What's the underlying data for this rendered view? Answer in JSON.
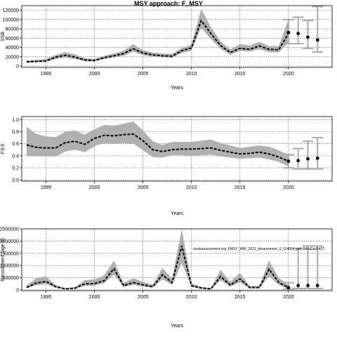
{
  "title": "MSY approach: F_MSY",
  "watermark": "stockassessment.org_FMSY_WW_2021_Assessment_3_114861_pid_3dbd2ad1437",
  "chart_data": [
    {
      "type": "line",
      "ylabel": "SSB",
      "xlabel": "Years",
      "xlim": [
        1992.5,
        2024.5
      ],
      "ylim": [
        -3000,
        130000
      ],
      "xticks": [
        1995,
        2000,
        2005,
        2010,
        2015,
        2020
      ],
      "yticks": [
        0,
        20000,
        40000,
        60000,
        80000,
        100000,
        120000
      ],
      "ytick_labels": [
        "0",
        "20000",
        "40000",
        "60000",
        "80000",
        "100000",
        "120000"
      ],
      "grid": true,
      "x": [
        1993,
        1994,
        1995,
        1996,
        1997,
        1998,
        1999,
        2000,
        2001,
        2002,
        2003,
        2004,
        2005,
        2006,
        2007,
        2008,
        2009,
        2010,
        2011,
        2012,
        2013,
        2014,
        2015,
        2016,
        2017,
        2018,
        2019,
        2020
      ],
      "median": [
        9000,
        10000,
        11000,
        19000,
        23000,
        19000,
        13000,
        12000,
        18000,
        22000,
        27000,
        37000,
        28000,
        24000,
        22000,
        21000,
        33000,
        39000,
        98000,
        70000,
        44000,
        29000,
        38000,
        36000,
        43000,
        36000,
        35000,
        70000
      ],
      "lower": [
        7000,
        8000,
        8500,
        15000,
        18000,
        15000,
        10000,
        9500,
        15000,
        18500,
        22000,
        31000,
        23000,
        20000,
        18500,
        17500,
        28000,
        33000,
        82000,
        58000,
        37000,
        24000,
        33000,
        31000,
        36000,
        30000,
        29000,
        50000
      ],
      "upper": [
        12000,
        13000,
        15000,
        24000,
        30000,
        25000,
        17000,
        15000,
        22000,
        27000,
        33000,
        47000,
        34000,
        29000,
        27000,
        26000,
        39000,
        46000,
        123000,
        84000,
        53000,
        36000,
        47000,
        44000,
        52000,
        43000,
        43000,
        100000
      ],
      "forecast": [
        {
          "x": 2020,
          "median": 72000,
          "low": 48000,
          "high": 100000
        },
        {
          "x": 2021,
          "median": 70000,
          "low": 48000,
          "high": 105000
        },
        {
          "x": 2022,
          "median": 62000,
          "low": 38000,
          "high": 98000
        },
        {
          "x": 2023,
          "median": 56000,
          "low": 30000,
          "high": 128000
        }
      ]
    },
    {
      "type": "line",
      "ylabel": "F3-5",
      "xlabel": "Years",
      "xlim": [
        1992.5,
        2024.5
      ],
      "ylim": [
        -0.02,
        1.05
      ],
      "xticks": [
        1995,
        2000,
        2005,
        2010,
        2015,
        2020
      ],
      "yticks": [
        0.0,
        0.2,
        0.4,
        0.6,
        0.8,
        1.0
      ],
      "ytick_labels": [
        "0.0",
        "0.2",
        "0.4",
        "0.6",
        "0.8",
        "1.0"
      ],
      "grid": true,
      "x": [
        1993,
        1994,
        1995,
        1996,
        1997,
        1998,
        1999,
        2000,
        2001,
        2002,
        2003,
        2004,
        2005,
        2006,
        2007,
        2008,
        2009,
        2010,
        2011,
        2012,
        2013,
        2014,
        2015,
        2016,
        2017,
        2018,
        2019,
        2020
      ],
      "median": [
        0.58,
        0.54,
        0.53,
        0.53,
        0.62,
        0.64,
        0.59,
        0.69,
        0.74,
        0.73,
        0.75,
        0.76,
        0.65,
        0.5,
        0.47,
        0.5,
        0.51,
        0.51,
        0.52,
        0.53,
        0.49,
        0.46,
        0.43,
        0.44,
        0.46,
        0.43,
        0.38,
        0.31
      ],
      "lower": [
        0.4,
        0.39,
        0.39,
        0.39,
        0.47,
        0.5,
        0.46,
        0.56,
        0.61,
        0.6,
        0.61,
        0.6,
        0.49,
        0.38,
        0.37,
        0.41,
        0.41,
        0.4,
        0.41,
        0.42,
        0.39,
        0.37,
        0.35,
        0.36,
        0.37,
        0.34,
        0.3,
        0.22
      ],
      "upper": [
        0.88,
        0.76,
        0.72,
        0.71,
        0.8,
        0.82,
        0.75,
        0.84,
        0.91,
        0.9,
        0.93,
        0.97,
        0.82,
        0.64,
        0.58,
        0.63,
        0.63,
        0.63,
        0.65,
        0.67,
        0.61,
        0.57,
        0.53,
        0.55,
        0.57,
        0.55,
        0.49,
        0.42
      ],
      "forecast": [
        {
          "x": 2020,
          "median": 0.31,
          "low": 0.2,
          "high": 0.42
        },
        {
          "x": 2021,
          "median": 0.32,
          "low": 0.18,
          "high": 0.52
        },
        {
          "x": 2022,
          "median": 0.35,
          "low": 0.18,
          "high": 0.64
        },
        {
          "x": 2023,
          "median": 0.36,
          "low": 0.18,
          "high": 0.7
        }
      ]
    },
    {
      "type": "line",
      "ylabel": "Recruitment (age 0)",
      "xlabel": "Years",
      "xlim": [
        1992.5,
        2024.5
      ],
      "ylim": [
        -30000,
        2500000
      ],
      "xticks": [
        1995,
        2000,
        2005,
        2010,
        2015,
        2020
      ],
      "yticks": [
        0,
        500000,
        1000000,
        1500000,
        2000000,
        2500000
      ],
      "ytick_labels": [
        "0",
        "500000",
        "1000000",
        "1500000",
        "2000000",
        "2500000"
      ],
      "grid": true,
      "x": [
        1993,
        1994,
        1995,
        1996,
        1997,
        1998,
        1999,
        2000,
        2001,
        2002,
        2003,
        2004,
        2005,
        2006,
        2007,
        2008,
        2009,
        2010,
        2011,
        2012,
        2013,
        2014,
        2015,
        2016,
        2017,
        2018,
        2019,
        2020
      ],
      "median": [
        100000,
        280000,
        350000,
        130000,
        40000,
        70000,
        250000,
        260000,
        380000,
        870000,
        180000,
        300000,
        210000,
        130000,
        620000,
        300000,
        1800000,
        170000,
        80000,
        40000,
        550000,
        200000,
        450000,
        100000,
        100000,
        850000,
        310000,
        90000
      ],
      "lower": [
        70000,
        190000,
        240000,
        90000,
        25000,
        50000,
        170000,
        180000,
        270000,
        630000,
        120000,
        210000,
        140000,
        90000,
        440000,
        200000,
        1100000,
        120000,
        50000,
        25000,
        390000,
        140000,
        310000,
        60000,
        60000,
        560000,
        210000,
        40000
      ],
      "upper": [
        180000,
        480000,
        560000,
        200000,
        70000,
        120000,
        400000,
        420000,
        600000,
        1200000,
        290000,
        480000,
        330000,
        210000,
        900000,
        470000,
        2500000,
        270000,
        130000,
        70000,
        830000,
        330000,
        700000,
        160000,
        170000,
        1200000,
        500000,
        200000
      ],
      "forecast": [
        {
          "x": 2020,
          "median": 90000,
          "low": 30000,
          "high": 300000
        },
        {
          "x": 2021,
          "median": 180000,
          "low": 60000,
          "high": 1700000
        },
        {
          "x": 2022,
          "median": 180000,
          "low": 60000,
          "high": 1800000
        },
        {
          "x": 2023,
          "median": 180000,
          "low": 60000,
          "high": 1800000
        }
      ]
    }
  ]
}
